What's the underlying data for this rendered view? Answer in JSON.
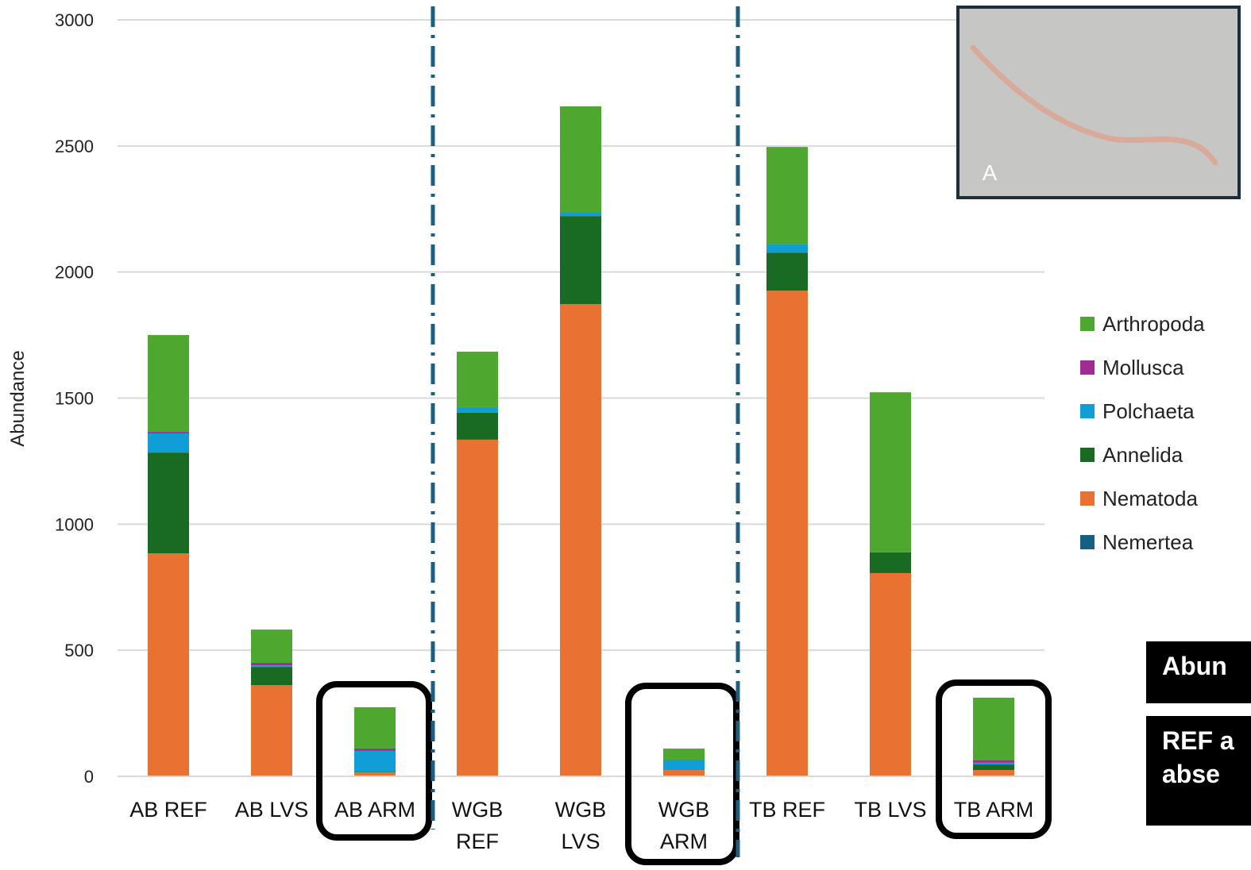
{
  "chart_data": {
    "type": "stacked_bar",
    "ylabel": "Abundance",
    "categories": [
      "AB REF",
      "AB LVS",
      "AB ARM",
      "WGB\nREF",
      "WGB\nLVS",
      "WGB\nARM",
      "TB REF",
      "TB LVS",
      "TB ARM"
    ],
    "series": [
      {
        "name": "Nemertea",
        "color": "#156082",
        "values": [
          0,
          0,
          3,
          0,
          0,
          0,
          0,
          0,
          0
        ]
      },
      {
        "name": "Nematoda",
        "color": "#e97132",
        "values": [
          884,
          362,
          12,
          1335,
          1873,
          25,
          1926,
          806,
          25
        ]
      },
      {
        "name": "Annelida",
        "color": "#196b24",
        "values": [
          400,
          72,
          3,
          107,
          349,
          0,
          151,
          82,
          22
        ]
      },
      {
        "name": "Polchaeta",
        "color": "#0f9ed5",
        "values": [
          76,
          6,
          83,
          22,
          13,
          38,
          35,
          0,
          7
        ]
      },
      {
        "name": "Mollusca",
        "color": "#a02b93",
        "values": [
          6,
          10,
          9,
          0,
          0,
          2,
          0,
          0,
          9
        ]
      },
      {
        "name": "Arthropoda",
        "color": "#4ea72e",
        "values": [
          384,
          132,
          164,
          220,
          422,
          45,
          384,
          635,
          249
        ]
      }
    ],
    "ylim": [
      0,
      3000
    ],
    "yticks": [
      0,
      500,
      1000,
      1500,
      2000,
      2500,
      3000
    ],
    "grid": true,
    "legend": "right",
    "inset_label": "A",
    "annotations": [
      "Abun",
      "REF a\nabse"
    ]
  }
}
